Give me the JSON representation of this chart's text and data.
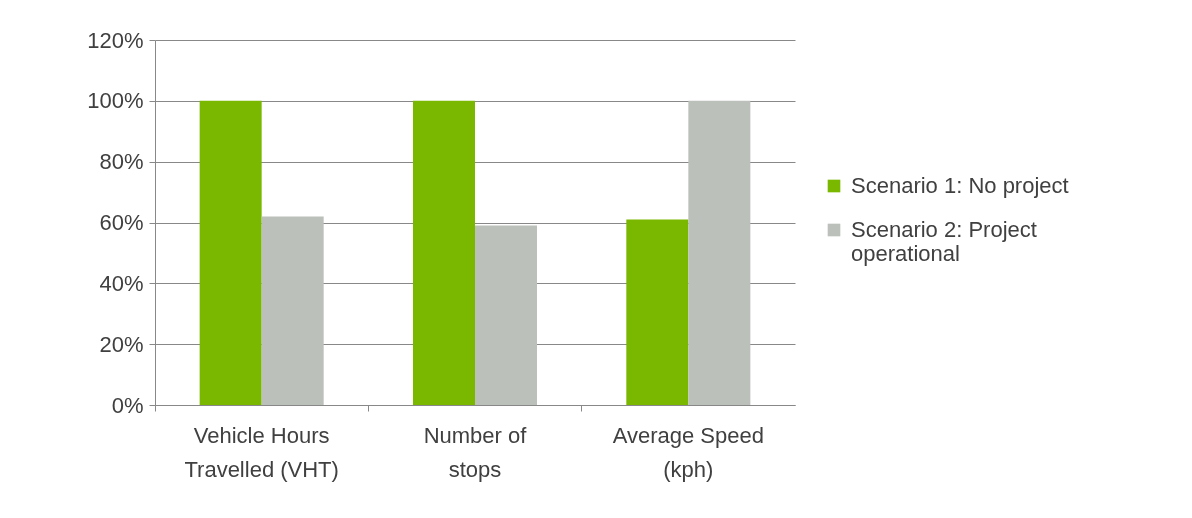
{
  "chart_data": {
    "type": "bar",
    "categories": [
      "Vehicle Hours Travelled (VHT)",
      "Number of stops",
      "Average Speed (kph)"
    ],
    "series": [
      {
        "name": "Scenario 1: No project",
        "color": "#7ab800",
        "values": [
          100,
          100,
          61
        ]
      },
      {
        "name": "Scenario 2: Project operational",
        "color": "#bcc0bb",
        "values": [
          62,
          59,
          100
        ]
      }
    ],
    "ylim": [
      0,
      120
    ],
    "yticks": [
      {
        "value": 0,
        "label": "0%"
      },
      {
        "value": 20,
        "label": "20%"
      },
      {
        "value": 40,
        "label": "40%"
      },
      {
        "value": 60,
        "label": "60%"
      },
      {
        "value": 80,
        "label": "80%"
      },
      {
        "value": 100,
        "label": "100%"
      },
      {
        "value": 120,
        "label": "120%"
      }
    ],
    "grid": "y",
    "legend": "right"
  }
}
